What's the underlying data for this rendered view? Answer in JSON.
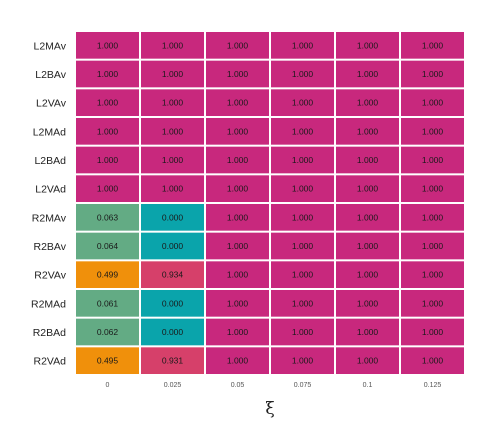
{
  "chart_data": {
    "type": "heatmap",
    "xlabel": "ξ",
    "ylabel": "",
    "x": [
      "0",
      "0.025",
      "0.05",
      "0.075",
      "0.1",
      "0.125"
    ],
    "y": [
      "L2MAv",
      "L2BAv",
      "L2VAv",
      "L2MAd",
      "L2BAd",
      "L2VAd",
      "R2MAv",
      "R2BAv",
      "R2VAv",
      "R2MAd",
      "R2BAd",
      "R2VAd"
    ],
    "values": [
      [
        1.0,
        1.0,
        1.0,
        1.0,
        1.0,
        1.0
      ],
      [
        1.0,
        1.0,
        1.0,
        1.0,
        1.0,
        1.0
      ],
      [
        1.0,
        1.0,
        1.0,
        1.0,
        1.0,
        1.0
      ],
      [
        1.0,
        1.0,
        1.0,
        1.0,
        1.0,
        1.0
      ],
      [
        1.0,
        1.0,
        1.0,
        1.0,
        1.0,
        1.0
      ],
      [
        1.0,
        1.0,
        1.0,
        1.0,
        1.0,
        1.0
      ],
      [
        0.063,
        0.0,
        1.0,
        1.0,
        1.0,
        1.0
      ],
      [
        0.064,
        0.0,
        1.0,
        1.0,
        1.0,
        1.0
      ],
      [
        0.499,
        0.934,
        1.0,
        1.0,
        1.0,
        1.0
      ],
      [
        0.061,
        0.0,
        1.0,
        1.0,
        1.0,
        1.0
      ],
      [
        0.062,
        0.0,
        1.0,
        1.0,
        1.0,
        1.0
      ],
      [
        0.495,
        0.931,
        1.0,
        1.0,
        1.0,
        1.0
      ]
    ],
    "labels": [
      [
        "1.000",
        "1.000",
        "1.000",
        "1.000",
        "1.000",
        "1.000"
      ],
      [
        "1.000",
        "1.000",
        "1.000",
        "1.000",
        "1.000",
        "1.000"
      ],
      [
        "1.000",
        "1.000",
        "1.000",
        "1.000",
        "1.000",
        "1.000"
      ],
      [
        "1.000",
        "1.000",
        "1.000",
        "1.000",
        "1.000",
        "1.000"
      ],
      [
        "1.000",
        "1.000",
        "1.000",
        "1.000",
        "1.000",
        "1.000"
      ],
      [
        "1.000",
        "1.000",
        "1.000",
        "1.000",
        "1.000",
        "1.000"
      ],
      [
        "0.063",
        "0.000",
        "1.000",
        "1.000",
        "1.000",
        "1.000"
      ],
      [
        "0.064",
        "0.000",
        "1.000",
        "1.000",
        "1.000",
        "1.000"
      ],
      [
        "0.499",
        "0.934",
        "1.000",
        "1.000",
        "1.000",
        "1.000"
      ],
      [
        "0.061",
        "0.000",
        "1.000",
        "1.000",
        "1.000",
        "1.000"
      ],
      [
        "0.062",
        "0.000",
        "1.000",
        "1.000",
        "1.000",
        "1.000"
      ],
      [
        "0.495",
        "0.931",
        "1.000",
        "1.000",
        "1.000",
        "1.000"
      ]
    ],
    "colors": [
      [
        "#c8287d",
        "#c8287d",
        "#c8287d",
        "#c8287d",
        "#c8287d",
        "#c8287d"
      ],
      [
        "#c8287d",
        "#c8287d",
        "#c8287d",
        "#c8287d",
        "#c8287d",
        "#c8287d"
      ],
      [
        "#c8287d",
        "#c8287d",
        "#c8287d",
        "#c8287d",
        "#c8287d",
        "#c8287d"
      ],
      [
        "#c8287d",
        "#c8287d",
        "#c8287d",
        "#c8287d",
        "#c8287d",
        "#c8287d"
      ],
      [
        "#c8287d",
        "#c8287d",
        "#c8287d",
        "#c8287d",
        "#c8287d",
        "#c8287d"
      ],
      [
        "#c8287d",
        "#c8287d",
        "#c8287d",
        "#c8287d",
        "#c8287d",
        "#c8287d"
      ],
      [
        "#63ab84",
        "#0aa4ab",
        "#c8287d",
        "#c8287d",
        "#c8287d",
        "#c8287d"
      ],
      [
        "#63ab84",
        "#0aa4ab",
        "#c8287d",
        "#c8287d",
        "#c8287d",
        "#c8287d"
      ],
      [
        "#f0900b",
        "#d6406a",
        "#c8287d",
        "#c8287d",
        "#c8287d",
        "#c8287d"
      ],
      [
        "#63ab84",
        "#0aa4ab",
        "#c8287d",
        "#c8287d",
        "#c8287d",
        "#c8287d"
      ],
      [
        "#63ab84",
        "#0aa4ab",
        "#c8287d",
        "#c8287d",
        "#c8287d",
        "#c8287d"
      ],
      [
        "#f0900b",
        "#d6406a",
        "#c8287d",
        "#c8287d",
        "#c8287d",
        "#c8287d"
      ]
    ],
    "grid": false,
    "legend": "none"
  }
}
